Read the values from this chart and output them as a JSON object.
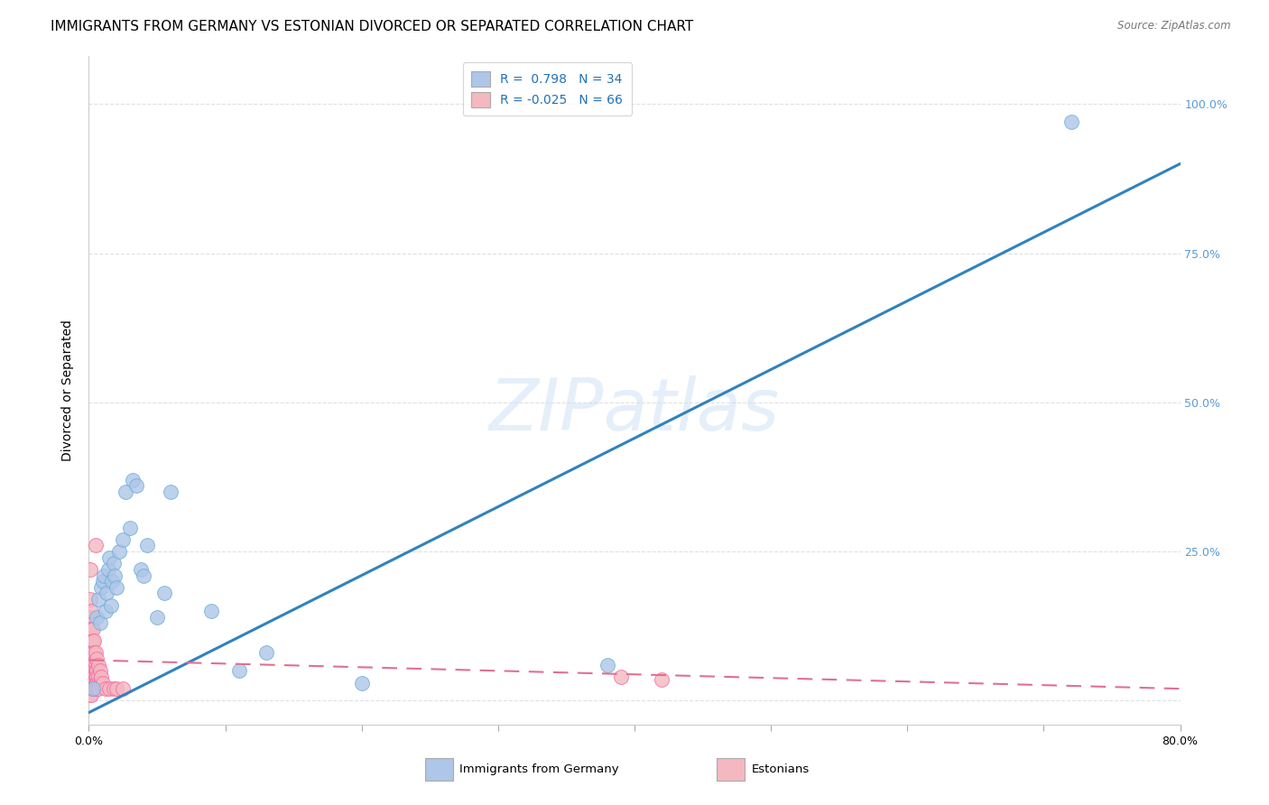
{
  "title": "IMMIGRANTS FROM GERMANY VS ESTONIAN DIVORCED OR SEPARATED CORRELATION CHART",
  "source": "Source: ZipAtlas.com",
  "ylabel": "Divorced or Separated",
  "watermark": "ZIPatlas",
  "xlim": [
    0.0,
    0.8
  ],
  "ylim": [
    -0.04,
    1.08
  ],
  "xtick_positions": [
    0.0,
    0.1,
    0.2,
    0.3,
    0.4,
    0.5,
    0.6,
    0.7,
    0.8
  ],
  "xtick_labels": [
    "0.0%",
    "",
    "",
    "",
    "",
    "",
    "",
    "",
    "80.0%"
  ],
  "right_yticks": [
    0.0,
    0.25,
    0.5,
    0.75,
    1.0
  ],
  "right_ytick_labels": [
    "",
    "25.0%",
    "50.0%",
    "75.0%",
    "100.0%"
  ],
  "legend_label_blue": "R =  0.798   N = 34",
  "legend_label_pink": "R = -0.025   N = 66",
  "blue_color": "#6baed6",
  "blue_fill": "#aec6e8",
  "pink_color": "#f768a1",
  "pink_fill": "#f4b8c1",
  "trend_blue_color": "#3182bd",
  "trend_pink_color": "#e07090",
  "trend_blue_intercept": -0.02,
  "trend_blue_slope": 1.15,
  "trend_pink_intercept": 0.068,
  "trend_pink_slope": -0.06,
  "background_color": "#ffffff",
  "grid_color": "#dddddd",
  "title_fontsize": 11,
  "axis_label_fontsize": 10,
  "tick_fontsize": 9,
  "right_tick_color": "#5b9bd5",
  "blue_scatter": [
    [
      0.003,
      0.02
    ],
    [
      0.006,
      0.14
    ],
    [
      0.007,
      0.17
    ],
    [
      0.008,
      0.13
    ],
    [
      0.009,
      0.19
    ],
    [
      0.01,
      0.2
    ],
    [
      0.011,
      0.21
    ],
    [
      0.012,
      0.15
    ],
    [
      0.013,
      0.18
    ],
    [
      0.014,
      0.22
    ],
    [
      0.015,
      0.24
    ],
    [
      0.016,
      0.16
    ],
    [
      0.017,
      0.2
    ],
    [
      0.018,
      0.23
    ],
    [
      0.019,
      0.21
    ],
    [
      0.02,
      0.19
    ],
    [
      0.022,
      0.25
    ],
    [
      0.025,
      0.27
    ],
    [
      0.027,
      0.35
    ],
    [
      0.03,
      0.29
    ],
    [
      0.032,
      0.37
    ],
    [
      0.035,
      0.36
    ],
    [
      0.038,
      0.22
    ],
    [
      0.04,
      0.21
    ],
    [
      0.043,
      0.26
    ],
    [
      0.05,
      0.14
    ],
    [
      0.055,
      0.18
    ],
    [
      0.06,
      0.35
    ],
    [
      0.09,
      0.15
    ],
    [
      0.11,
      0.05
    ],
    [
      0.13,
      0.08
    ],
    [
      0.2,
      0.03
    ],
    [
      0.38,
      0.06
    ],
    [
      0.72,
      0.97
    ]
  ],
  "pink_scatter": [
    [
      0.001,
      0.22
    ],
    [
      0.001,
      0.17
    ],
    [
      0.001,
      0.14
    ],
    [
      0.001,
      0.12
    ],
    [
      0.001,
      0.1
    ],
    [
      0.001,
      0.08
    ],
    [
      0.001,
      0.07
    ],
    [
      0.001,
      0.06
    ],
    [
      0.001,
      0.05
    ],
    [
      0.001,
      0.04
    ],
    [
      0.001,
      0.03
    ],
    [
      0.001,
      0.02
    ],
    [
      0.001,
      0.01
    ],
    [
      0.002,
      0.15
    ],
    [
      0.002,
      0.12
    ],
    [
      0.002,
      0.1
    ],
    [
      0.002,
      0.08
    ],
    [
      0.002,
      0.07
    ],
    [
      0.002,
      0.06
    ],
    [
      0.002,
      0.05
    ],
    [
      0.002,
      0.04
    ],
    [
      0.002,
      0.03
    ],
    [
      0.002,
      0.02
    ],
    [
      0.002,
      0.01
    ],
    [
      0.003,
      0.12
    ],
    [
      0.003,
      0.1
    ],
    [
      0.003,
      0.08
    ],
    [
      0.003,
      0.06
    ],
    [
      0.003,
      0.05
    ],
    [
      0.003,
      0.04
    ],
    [
      0.003,
      0.03
    ],
    [
      0.003,
      0.02
    ],
    [
      0.004,
      0.1
    ],
    [
      0.004,
      0.08
    ],
    [
      0.004,
      0.06
    ],
    [
      0.004,
      0.05
    ],
    [
      0.004,
      0.04
    ],
    [
      0.004,
      0.03
    ],
    [
      0.004,
      0.02
    ],
    [
      0.005,
      0.26
    ],
    [
      0.005,
      0.08
    ],
    [
      0.005,
      0.06
    ],
    [
      0.005,
      0.05
    ],
    [
      0.005,
      0.04
    ],
    [
      0.005,
      0.03
    ],
    [
      0.005,
      0.02
    ],
    [
      0.006,
      0.07
    ],
    [
      0.006,
      0.05
    ],
    [
      0.006,
      0.04
    ],
    [
      0.006,
      0.03
    ],
    [
      0.006,
      0.02
    ],
    [
      0.007,
      0.06
    ],
    [
      0.007,
      0.04
    ],
    [
      0.007,
      0.03
    ],
    [
      0.007,
      0.02
    ],
    [
      0.008,
      0.05
    ],
    [
      0.008,
      0.03
    ],
    [
      0.009,
      0.04
    ],
    [
      0.01,
      0.03
    ],
    [
      0.012,
      0.02
    ],
    [
      0.015,
      0.02
    ],
    [
      0.018,
      0.02
    ],
    [
      0.02,
      0.02
    ],
    [
      0.025,
      0.02
    ],
    [
      0.39,
      0.04
    ],
    [
      0.42,
      0.035
    ]
  ]
}
